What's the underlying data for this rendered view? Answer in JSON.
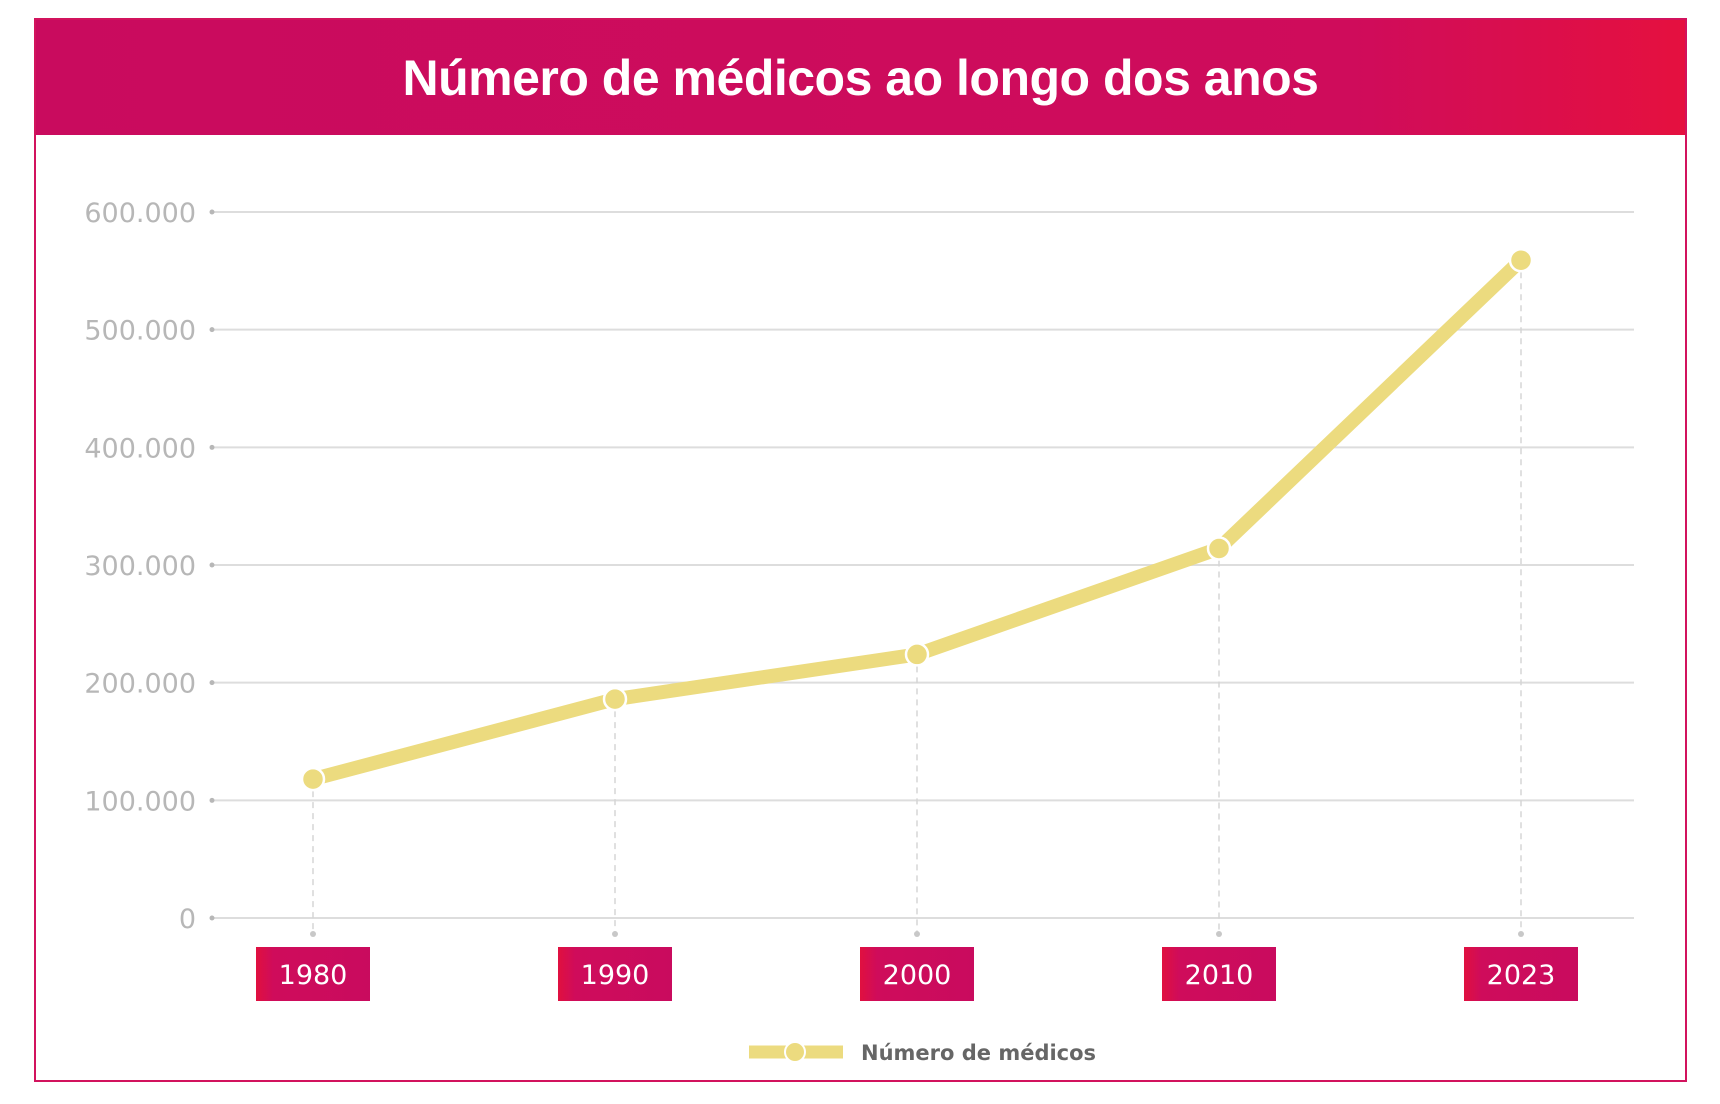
{
  "header": {
    "title": "Número de médicos ao longo dos anos"
  },
  "colors": {
    "accent": "#cf0c5b",
    "line": "#ecdb7f",
    "grid": "#dddddd",
    "tick": "#b7b7b7"
  },
  "chart_data": {
    "type": "line",
    "title": "Número de médicos ao longo dos anos",
    "xlabel": "",
    "ylabel": "",
    "categories": [
      "1980",
      "1990",
      "2000",
      "2010",
      "2023"
    ],
    "series": [
      {
        "name": "Número de médicos",
        "values": [
          118000,
          186000,
          224000,
          314000,
          559000
        ]
      }
    ],
    "ylim": [
      0,
      600000
    ],
    "yticks": [
      0,
      100000,
      200000,
      300000,
      400000,
      500000,
      600000
    ],
    "ytick_labels": [
      "0",
      "100.000",
      "200.000",
      "300.000",
      "400.000",
      "500.000",
      "600.000"
    ],
    "grid": true,
    "legend": "bottom-center"
  }
}
